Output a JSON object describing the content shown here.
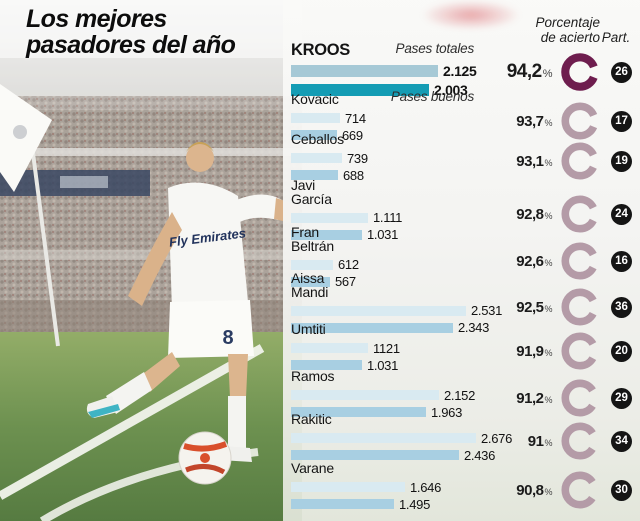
{
  "title": {
    "line1": "Los mejores",
    "line2": "pasadores del año"
  },
  "columns": {
    "accuracy_line1": "Porcentaje",
    "accuracy_line2": "de acierto",
    "appearances": "Part."
  },
  "legend": {
    "pases_totales": "Pases totales",
    "pases_buenos": "Pases buenos"
  },
  "percent_symbol": "%",
  "colors": {
    "bar_total_highlight": "#a6c9d6",
    "bar_good_highlight": "#149cb4",
    "bar_total": "#d9eaf1",
    "bar_good": "#a8cfe2",
    "ring_highlight": "#6e1d4e",
    "ring_normal": "#b49ba7",
    "badge_bg": "#151515",
    "badge_text": "#ffffff"
  },
  "photo": {
    "jersey_sponsor": "Fly Emirates",
    "shorts_number": "8"
  },
  "chart_data": {
    "type": "bar",
    "orientation": "horizontal",
    "title": "Los mejores pasadores del año",
    "series_labels": [
      "Pases totales",
      "Pases buenos"
    ],
    "x_max_reference": 2676,
    "players": [
      {
        "name_lines": [
          "KROOS"
        ],
        "pases_totales": "2.125",
        "pases_buenos": "2.003",
        "totales_num": 2125,
        "buenos_num": 2003,
        "accuracy_display": "94,2",
        "accuracy_value": 94.2,
        "appearances": "26",
        "highlight": true
      },
      {
        "name_lines": [
          "Kovacic"
        ],
        "pases_totales": "714",
        "pases_buenos": "669",
        "totales_num": 714,
        "buenos_num": 669,
        "accuracy_display": "93,7",
        "accuracy_value": 93.7,
        "appearances": "17",
        "highlight": false
      },
      {
        "name_lines": [
          "Ceballos"
        ],
        "pases_totales": "739",
        "pases_buenos": "688",
        "totales_num": 739,
        "buenos_num": 688,
        "accuracy_display": "93,1",
        "accuracy_value": 93.1,
        "appearances": "19",
        "highlight": false
      },
      {
        "name_lines": [
          "Javi",
          "García"
        ],
        "pases_totales": "1.111",
        "pases_buenos": "1.031",
        "totales_num": 1111,
        "buenos_num": 1031,
        "accuracy_display": "92,8",
        "accuracy_value": 92.8,
        "appearances": "24",
        "highlight": false
      },
      {
        "name_lines": [
          "Fran",
          "Beltrán"
        ],
        "pases_totales": "612",
        "pases_buenos": "567",
        "totales_num": 612,
        "buenos_num": 567,
        "accuracy_display": "92,6",
        "accuracy_value": 92.6,
        "appearances": "16",
        "highlight": false
      },
      {
        "name_lines": [
          "Aissa",
          "Mandi"
        ],
        "pases_totales": "2.531",
        "pases_buenos": "2.343",
        "totales_num": 2531,
        "buenos_num": 2343,
        "accuracy_display": "92,5",
        "accuracy_value": 92.5,
        "appearances": "36",
        "highlight": false
      },
      {
        "name_lines": [
          "Umtiti"
        ],
        "pases_totales": "1121",
        "pases_buenos": "1.031",
        "totales_num": 1121,
        "buenos_num": 1031,
        "accuracy_display": "91,9",
        "accuracy_value": 91.9,
        "appearances": "20",
        "highlight": false
      },
      {
        "name_lines": [
          "Ramos"
        ],
        "pases_totales": "2.152",
        "pases_buenos": "1.963",
        "totales_num": 2152,
        "buenos_num": 1963,
        "accuracy_display": "91,2",
        "accuracy_value": 91.2,
        "appearances": "29",
        "highlight": false
      },
      {
        "name_lines": [
          "Rakitic"
        ],
        "pases_totales": "2.676",
        "pases_buenos": "2.436",
        "totales_num": 2676,
        "buenos_num": 2436,
        "accuracy_display": "91",
        "accuracy_value": 91.0,
        "appearances": "34",
        "highlight": false
      },
      {
        "name_lines": [
          "Varane"
        ],
        "pases_totales": "1.646",
        "pases_buenos": "1.495",
        "totales_num": 1646,
        "buenos_num": 1495,
        "accuracy_display": "90,8",
        "accuracy_value": 90.8,
        "appearances": "30",
        "highlight": false
      }
    ]
  }
}
